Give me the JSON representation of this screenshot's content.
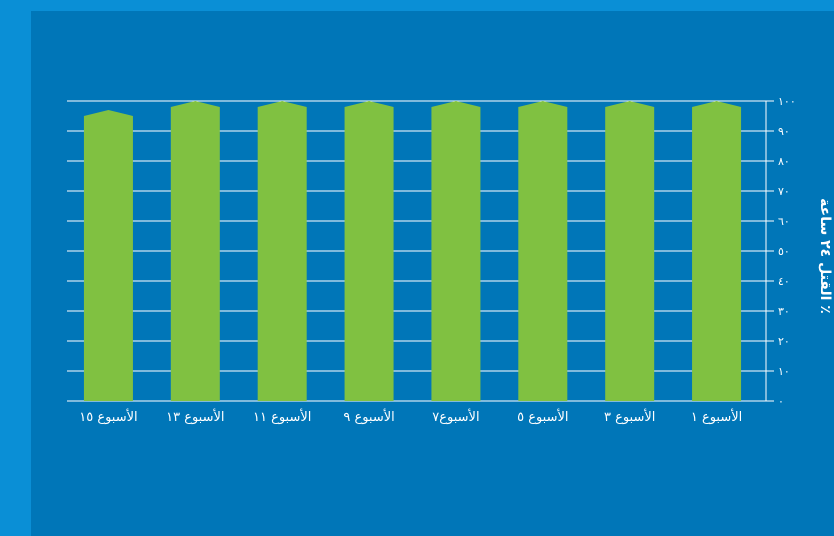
{
  "chart_data": {
    "type": "bar",
    "categories": [
      "الأسبوع ١",
      "الأسبوع ٣",
      "الأسبوع ٥",
      "الأسبوع٧",
      "الأسبوع ٩",
      "الأسبوع ١١",
      "الأسبوع ١٣",
      "الأسبوع ١٥"
    ],
    "values": [
      100,
      100,
      100,
      100,
      100,
      100,
      100,
      97
    ],
    "ylabel": "٪ القتل ٢٤ ساعة",
    "ylim": [
      0,
      100
    ],
    "yticks": [
      "٠",
      "١٠",
      "٢٠",
      "٣٠",
      "٤٠",
      "٥٠",
      "٦٠",
      "٧٠",
      "٨٠",
      "٩٠",
      "١٠٠"
    ],
    "y_axis_side": "right",
    "category_order": "right-to-left",
    "grid": true,
    "colors": {
      "bar": "#80c141",
      "grid": "#ffffff",
      "plot_bg": "#0076b8",
      "page_bg": "#0a8fd6",
      "text": "#ffffff"
    }
  }
}
